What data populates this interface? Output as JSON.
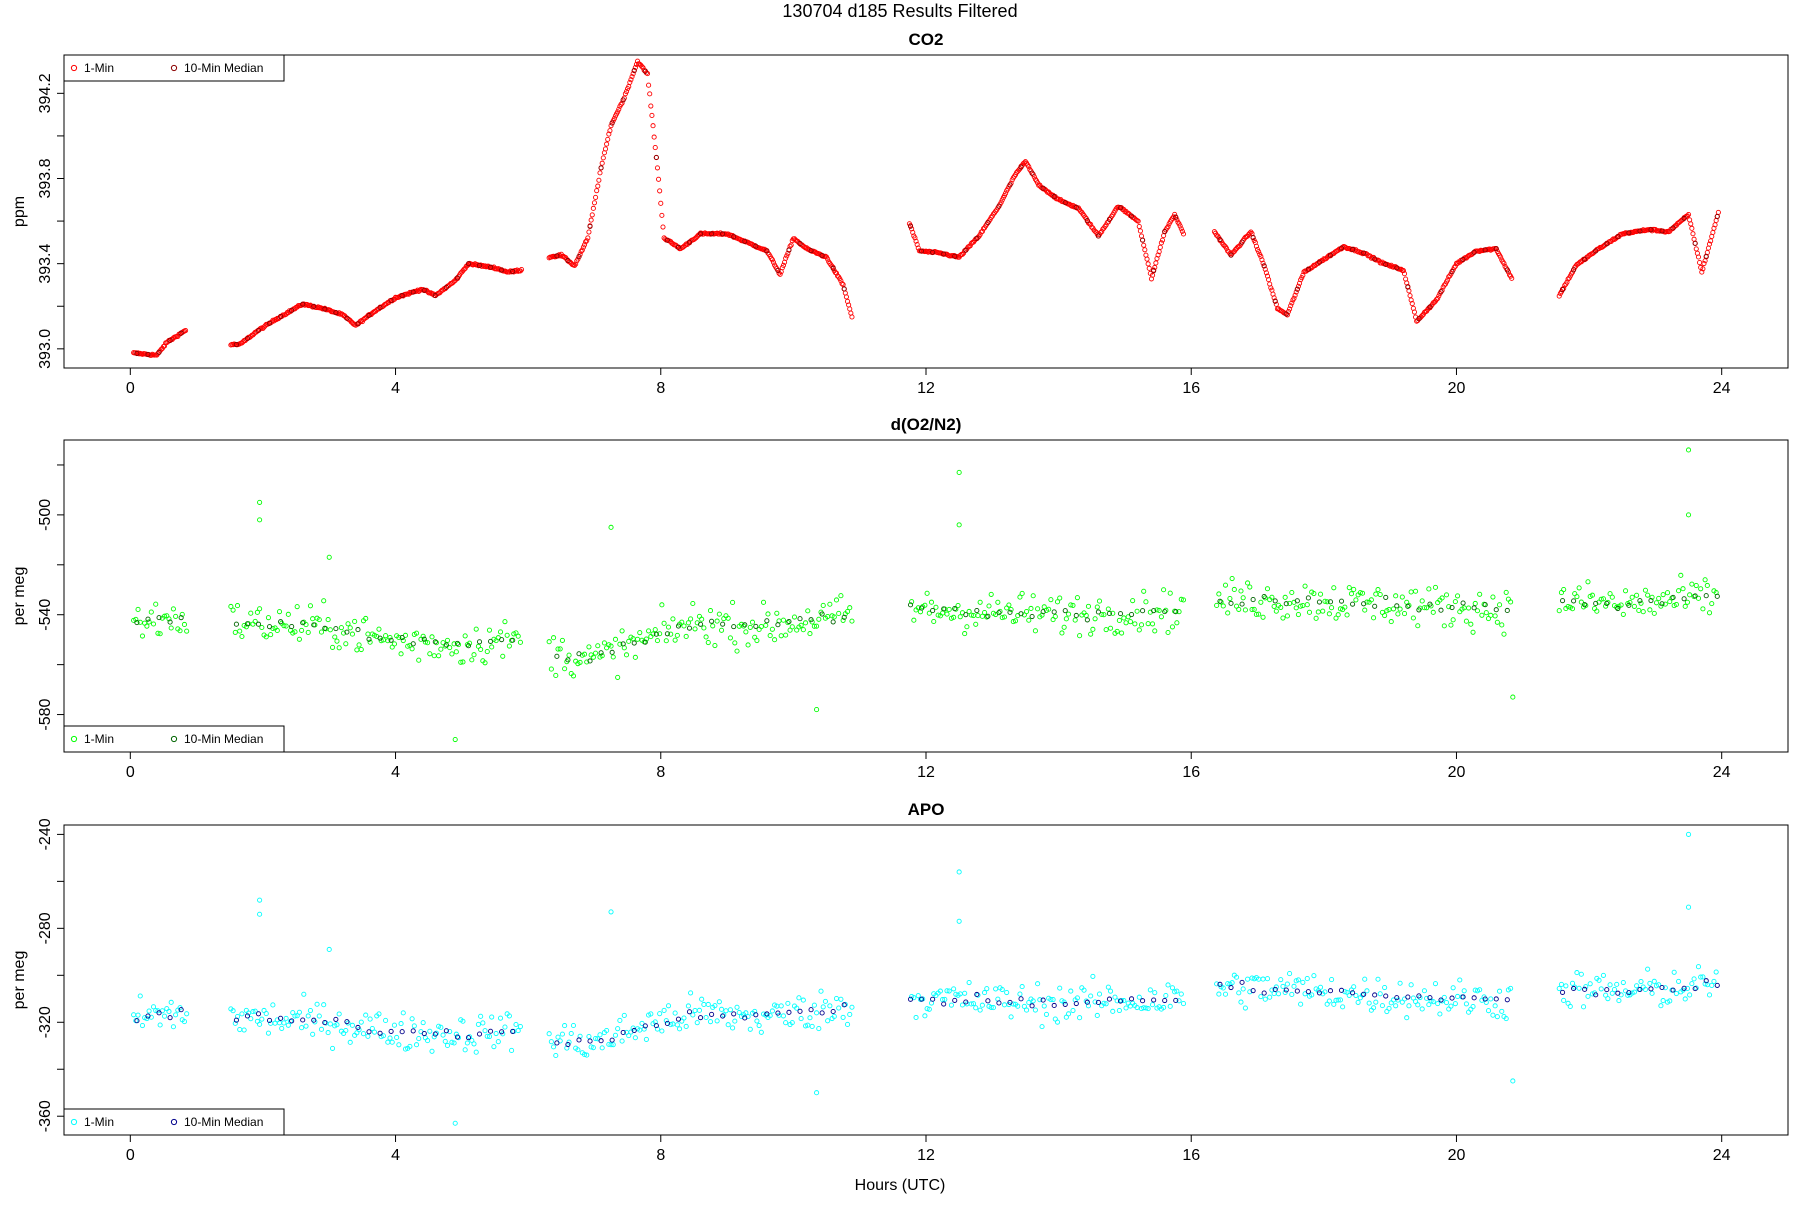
{
  "figure": {
    "title": "130704   d185   Results Filtered",
    "xlabel": "Hours (UTC)"
  },
  "chart_data": [
    {
      "type": "scatter",
      "title": "CO2",
      "ylabel": "ppm",
      "xlim": [
        -1,
        25
      ],
      "ylim": [
        392.91,
        394.38
      ],
      "xticks": [
        0,
        4,
        8,
        12,
        16,
        20,
        24
      ],
      "yticks": [
        393.0,
        393.4,
        393.8,
        394.2
      ],
      "ytick_labels": [
        "393.0",
        "393.4",
        "393.8",
        "394.2"
      ],
      "minor_yticks": [
        393.2,
        393.6,
        394.0
      ],
      "legend": {
        "position": "top-left",
        "entries": [
          "1-Min",
          "10-Min Median"
        ]
      },
      "series": [
        {
          "name": "1-Min",
          "color": "#ff0000"
        },
        {
          "name": "10-Min Median",
          "color": "#8b0000"
        }
      ],
      "segments": [
        [
          0.05,
          0.85
        ],
        [
          1.5,
          5.9
        ],
        [
          6.3,
          10.9
        ],
        [
          11.75,
          15.9
        ],
        [
          16.35,
          20.85
        ],
        [
          21.55,
          23.95
        ]
      ],
      "points": [
        [
          0.05,
          392.98
        ],
        [
          0.4,
          392.97
        ],
        [
          0.55,
          393.03
        ],
        [
          0.85,
          393.09
        ],
        [
          1.5,
          393.02
        ],
        [
          1.65,
          393.02
        ],
        [
          1.9,
          393.08
        ],
        [
          2.2,
          393.14
        ],
        [
          2.6,
          393.21
        ],
        [
          2.9,
          393.19
        ],
        [
          3.2,
          393.16
        ],
        [
          3.4,
          393.11
        ],
        [
          3.7,
          393.18
        ],
        [
          4.0,
          393.24
        ],
        [
          4.4,
          393.28
        ],
        [
          4.6,
          393.25
        ],
        [
          4.9,
          393.32
        ],
        [
          5.1,
          393.4
        ],
        [
          5.5,
          393.38
        ],
        [
          5.7,
          393.36
        ],
        [
          5.9,
          393.37
        ],
        [
          6.3,
          393.43
        ],
        [
          6.5,
          393.44
        ],
        [
          6.7,
          393.39
        ],
        [
          6.9,
          393.52
        ],
        [
          7.1,
          393.85
        ],
        [
          7.25,
          394.05
        ],
        [
          7.45,
          394.18
        ],
        [
          7.65,
          394.35
        ],
        [
          7.8,
          394.29
        ],
        [
          7.95,
          393.85
        ],
        [
          8.05,
          393.52
        ],
        [
          8.3,
          393.47
        ],
        [
          8.6,
          393.54
        ],
        [
          9.0,
          393.54
        ],
        [
          9.3,
          393.5
        ],
        [
          9.6,
          393.46
        ],
        [
          9.8,
          393.35
        ],
        [
          10.0,
          393.52
        ],
        [
          10.2,
          393.47
        ],
        [
          10.5,
          393.43
        ],
        [
          10.75,
          393.3
        ],
        [
          10.9,
          393.13
        ],
        [
          11.75,
          393.59
        ],
        [
          11.9,
          393.46
        ],
        [
          12.2,
          393.45
        ],
        [
          12.5,
          393.43
        ],
        [
          12.8,
          393.53
        ],
        [
          13.1,
          393.67
        ],
        [
          13.35,
          393.82
        ],
        [
          13.5,
          393.88
        ],
        [
          13.7,
          393.77
        ],
        [
          14.0,
          393.7
        ],
        [
          14.3,
          393.66
        ],
        [
          14.6,
          393.53
        ],
        [
          14.9,
          393.67
        ],
        [
          15.2,
          393.6
        ],
        [
          15.4,
          393.33
        ],
        [
          15.6,
          393.55
        ],
        [
          15.75,
          393.63
        ],
        [
          15.9,
          393.53
        ],
        [
          16.35,
          393.55
        ],
        [
          16.6,
          393.44
        ],
        [
          16.9,
          393.55
        ],
        [
          17.1,
          393.39
        ],
        [
          17.3,
          393.19
        ],
        [
          17.45,
          393.16
        ],
        [
          17.7,
          393.36
        ],
        [
          18.0,
          393.42
        ],
        [
          18.3,
          393.48
        ],
        [
          18.6,
          393.45
        ],
        [
          18.9,
          393.4
        ],
        [
          19.2,
          393.37
        ],
        [
          19.4,
          393.13
        ],
        [
          19.7,
          393.23
        ],
        [
          20.0,
          393.4
        ],
        [
          20.3,
          393.46
        ],
        [
          20.6,
          393.47
        ],
        [
          20.85,
          393.32
        ],
        [
          21.55,
          393.25
        ],
        [
          21.8,
          393.39
        ],
        [
          22.1,
          393.46
        ],
        [
          22.5,
          393.54
        ],
        [
          22.9,
          393.56
        ],
        [
          23.2,
          393.55
        ],
        [
          23.5,
          393.63
        ],
        [
          23.7,
          393.36
        ],
        [
          23.95,
          393.64
        ]
      ]
    },
    {
      "type": "scatter",
      "title": "d(O2/N2)",
      "ylabel": "per meg",
      "xlim": [
        -1,
        25
      ],
      "ylim": [
        -595,
        -470
      ],
      "xticks": [
        0,
        4,
        8,
        12,
        16,
        20,
        24
      ],
      "yticks": [
        -500,
        -540,
        -580
      ],
      "ytick_labels": [
        "-500",
        "-540",
        "-580"
      ],
      "minor_yticks": [
        -480,
        -520,
        -560
      ],
      "legend": {
        "position": "bottom-left",
        "entries": [
          "1-Min",
          "10-Min Median"
        ]
      },
      "series": [
        {
          "name": "1-Min",
          "color": "#00ff00"
        },
        {
          "name": "10-Min Median",
          "color": "#006400"
        }
      ],
      "segments": [
        [
          0.05,
          0.85
        ],
        [
          1.5,
          5.9
        ],
        [
          6.3,
          10.9
        ],
        [
          11.75,
          15.9
        ],
        [
          16.35,
          20.85
        ],
        [
          21.55,
          23.95
        ]
      ],
      "baseline": [
        [
          0.05,
          -543
        ],
        [
          0.85,
          -541
        ],
        [
          1.5,
          -543
        ],
        [
          3.0,
          -545
        ],
        [
          4.0,
          -551
        ],
        [
          5.0,
          -552
        ],
        [
          5.9,
          -550
        ],
        [
          6.3,
          -555
        ],
        [
          7.0,
          -558
        ],
        [
          7.8,
          -550
        ],
        [
          8.5,
          -543
        ],
        [
          9.5,
          -545
        ],
        [
          10.9,
          -540
        ],
        [
          11.75,
          -538
        ],
        [
          13.0,
          -539
        ],
        [
          14.0,
          -540
        ],
        [
          15.9,
          -538
        ],
        [
          16.35,
          -534
        ],
        [
          17.5,
          -534
        ],
        [
          19.0,
          -536
        ],
        [
          20.85,
          -538
        ],
        [
          21.55,
          -534
        ],
        [
          22.5,
          -536
        ],
        [
          23.95,
          -533
        ]
      ],
      "spread": 8,
      "outliers": [
        [
          1.95,
          -495
        ],
        [
          1.95,
          -502
        ],
        [
          3.0,
          -517
        ],
        [
          4.9,
          -590
        ],
        [
          7.25,
          -505
        ],
        [
          10.35,
          -578
        ],
        [
          12.5,
          -483
        ],
        [
          12.5,
          -504
        ],
        [
          20.85,
          -573
        ],
        [
          23.5,
          -474
        ],
        [
          23.5,
          -500
        ]
      ]
    },
    {
      "type": "scatter",
      "title": "APO",
      "ylabel": "per meg",
      "xlim": [
        -1,
        25
      ],
      "ylim": [
        -368,
        -236
      ],
      "xticks": [
        0,
        4,
        8,
        12,
        16,
        20,
        24
      ],
      "yticks": [
        -240,
        -280,
        -320,
        -360
      ],
      "ytick_labels": [
        "-240",
        "-280",
        "-320",
        "-360"
      ],
      "minor_yticks": [
        -260,
        -300,
        -340
      ],
      "legend": {
        "position": "bottom-left",
        "entries": [
          "1-Min",
          "10-Min Median"
        ]
      },
      "series": [
        {
          "name": "1-Min",
          "color": "#00ffff"
        },
        {
          "name": "10-Min Median",
          "color": "#00008b"
        }
      ],
      "segments": [
        [
          0.05,
          0.85
        ],
        [
          1.5,
          5.9
        ],
        [
          6.3,
          10.9
        ],
        [
          11.75,
          15.9
        ],
        [
          16.35,
          20.85
        ],
        [
          21.55,
          23.95
        ]
      ],
      "baseline": [
        [
          0.05,
          -318
        ],
        [
          0.85,
          -316
        ],
        [
          1.5,
          -318
        ],
        [
          3.0,
          -320
        ],
        [
          4.0,
          -324
        ],
        [
          5.0,
          -325
        ],
        [
          5.9,
          -323
        ],
        [
          6.3,
          -327
        ],
        [
          7.0,
          -329
        ],
        [
          7.8,
          -321
        ],
        [
          8.5,
          -316
        ],
        [
          9.5,
          -318
        ],
        [
          10.9,
          -313
        ],
        [
          11.75,
          -310
        ],
        [
          13.0,
          -311
        ],
        [
          14.0,
          -312
        ],
        [
          15.9,
          -310
        ],
        [
          16.35,
          -305
        ],
        [
          17.5,
          -306
        ],
        [
          19.0,
          -309
        ],
        [
          20.85,
          -311
        ],
        [
          21.55,
          -306
        ],
        [
          22.5,
          -307
        ],
        [
          23.95,
          -304
        ]
      ],
      "spread": 8,
      "outliers": [
        [
          1.95,
          -268
        ],
        [
          1.95,
          -274
        ],
        [
          3.0,
          -289
        ],
        [
          4.9,
          -363
        ],
        [
          7.25,
          -273
        ],
        [
          10.35,
          -350
        ],
        [
          12.5,
          -256
        ],
        [
          12.5,
          -277
        ],
        [
          20.85,
          -345
        ],
        [
          23.5,
          -240
        ],
        [
          23.5,
          -271
        ]
      ]
    }
  ]
}
